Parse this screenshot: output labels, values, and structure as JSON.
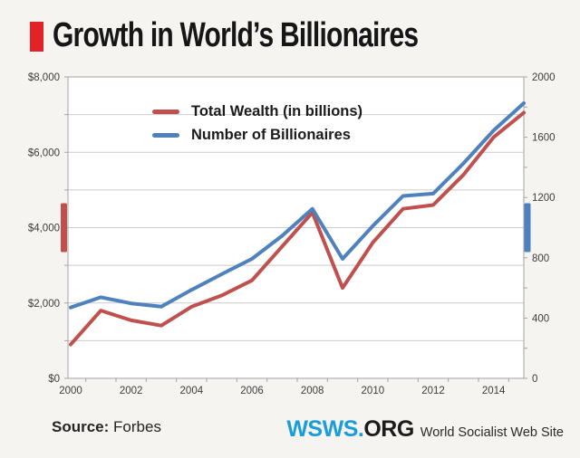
{
  "page": {
    "title": "Growth in World’s Billionaires",
    "source_label": "Source:",
    "source_value": "Forbes",
    "brand_wsws": "WSWS.",
    "brand_org": "ORG",
    "brand_tagline": "World Socialist Web Site"
  },
  "colors": {
    "accent_red": "#e32227",
    "wealth_red": "#c0504d",
    "billionaires_blue": "#4f81bd",
    "wsws_blue": "#1a9dd9",
    "page_background": "#f5f4f1",
    "plot_background": "#ffffff",
    "gridline": "#cbcbcb",
    "axis_line": "#a3a3a3",
    "axis_text": "#3d3d3d"
  },
  "chart_data": {
    "type": "line",
    "title": "Growth in World’s Billionaires",
    "x": [
      2000,
      2001,
      2002,
      2003,
      2004,
      2005,
      2006,
      2007,
      2008,
      2009,
      2010,
      2011,
      2012,
      2013,
      2014,
      2015
    ],
    "series": [
      {
        "name": "Total Wealth (in billions)",
        "axis": "left",
        "color": "#c0504d",
        "values": [
          898,
          1800,
          1540,
          1400,
          1900,
          2200,
          2600,
          3500,
          4400,
          2400,
          3600,
          4500,
          4600,
          5400,
          6400,
          7050
        ]
      },
      {
        "name": "Number of Billionaires",
        "axis": "right",
        "color": "#4f81bd",
        "values": [
          470,
          538,
          497,
          476,
          587,
          691,
          793,
          946,
          1125,
          793,
          1011,
          1210,
          1226,
          1426,
          1645,
          1826
        ]
      }
    ],
    "left_axis": {
      "min": 0,
      "max": 8000,
      "gridline_interval": 1000,
      "tick_interval": 1000,
      "labels": [
        {
          "value": 0,
          "text": "$0"
        },
        {
          "value": 2000,
          "text": "$2,000"
        },
        {
          "value": 4000,
          "text": "$4,000"
        },
        {
          "value": 6000,
          "text": "$6,000"
        },
        {
          "value": 8000,
          "text": "$8,000"
        }
      ],
      "marker_center_value": 4000
    },
    "right_axis": {
      "min": 0,
      "max": 2000,
      "tick_interval": 200,
      "labels": [
        {
          "value": 0,
          "text": "0"
        },
        {
          "value": 400,
          "text": "400"
        },
        {
          "value": 800,
          "text": "800"
        },
        {
          "value": 1200,
          "text": "1200"
        },
        {
          "value": 1600,
          "text": "1600"
        },
        {
          "value": 2000,
          "text": "2000"
        }
      ],
      "marker_center_value": 1000
    },
    "x_axis": {
      "labels": [
        "2000",
        "2002",
        "2004",
        "2006",
        "2008",
        "2010",
        "2012",
        "2014"
      ],
      "label_years": [
        2000,
        2002,
        2004,
        2006,
        2008,
        2010,
        2012,
        2014
      ]
    },
    "grid": true,
    "legend_position": "top-inside"
  }
}
